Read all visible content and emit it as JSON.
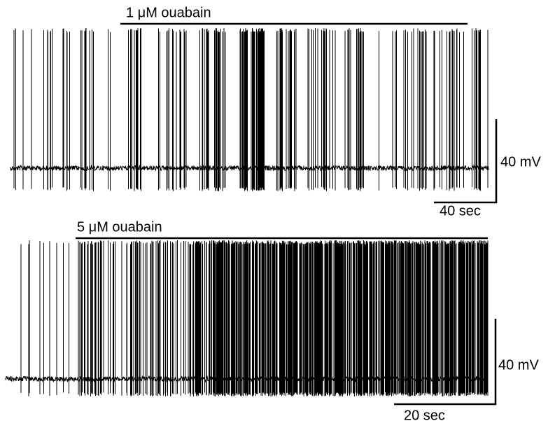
{
  "top": {
    "drug_label": "1 μM ouabain",
    "voltage_scale": "40 mV",
    "time_scale": "40 sec"
  },
  "bottom": {
    "drug_label": "5 μM ouabain",
    "voltage_scale": "40 mV",
    "time_scale": "20 sec"
  }
}
